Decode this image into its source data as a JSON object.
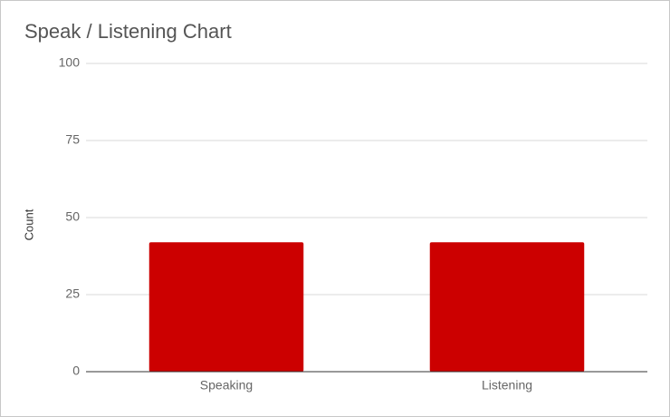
{
  "chart_data": {
    "type": "bar",
    "title": "Speak / Listening Chart",
    "y_label": "Count",
    "categories": [
      "Speaking",
      "Listening"
    ],
    "values": [
      42,
      42
    ],
    "color": "#cc0000",
    "ylim": [
      0,
      100
    ],
    "yticks": [
      0,
      25,
      50,
      75,
      100
    ],
    "grid": true
  }
}
